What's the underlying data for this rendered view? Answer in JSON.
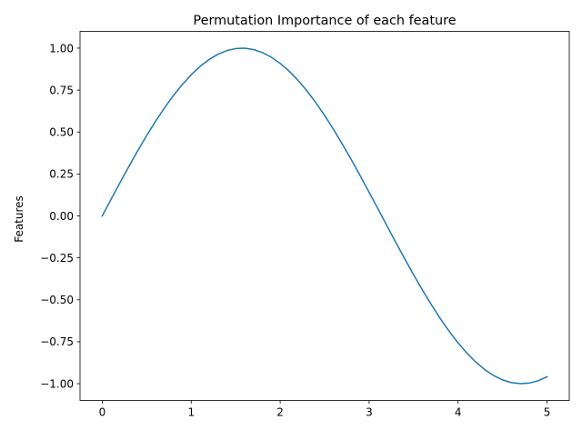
{
  "chart_data": {
    "type": "line",
    "title": "Permutation Importance of each feature",
    "xlabel": "",
    "ylabel": "Features",
    "xlim": [
      -0.25,
      5.25
    ],
    "ylim": [
      -1.1,
      1.1
    ],
    "x_ticks": [
      0,
      1,
      2,
      3,
      4,
      5
    ],
    "x_tick_labels": [
      "0",
      "1",
      "2",
      "3",
      "4",
      "5"
    ],
    "y_ticks": [
      -1.0,
      -0.75,
      -0.5,
      -0.25,
      0.0,
      0.25,
      0.5,
      0.75,
      1.0
    ],
    "y_tick_labels": [
      "−1.00",
      "−0.75",
      "−0.50",
      "−0.25",
      "0.00",
      "0.25",
      "0.50",
      "0.75",
      "1.00"
    ],
    "grid": false,
    "legend": "none",
    "colors": {
      "line": "#1f77b4",
      "axes": "#000000"
    },
    "series": [
      {
        "x": [
          0.0,
          0.1,
          0.2,
          0.3,
          0.4,
          0.5,
          0.6,
          0.7,
          0.8,
          0.9,
          1.0,
          1.1,
          1.2,
          1.3,
          1.4,
          1.5,
          1.6,
          1.7,
          1.8,
          1.9,
          2.0,
          2.1,
          2.2,
          2.3,
          2.4,
          2.5,
          2.6,
          2.7,
          2.8,
          2.9,
          3.0,
          3.1,
          3.2,
          3.3,
          3.4,
          3.5,
          3.6,
          3.7,
          3.8,
          3.9,
          4.0,
          4.1,
          4.2,
          4.3,
          4.4,
          4.5,
          4.6,
          4.7,
          4.8,
          4.9,
          5.0
        ],
        "y": [
          0.0,
          0.0998,
          0.1987,
          0.2955,
          0.3894,
          0.4794,
          0.5646,
          0.6442,
          0.7174,
          0.7833,
          0.8415,
          0.8912,
          0.932,
          0.9636,
          0.9854,
          0.9975,
          0.9996,
          0.9917,
          0.9738,
          0.9463,
          0.9093,
          0.8632,
          0.8085,
          0.7457,
          0.6755,
          0.5985,
          0.5155,
          0.4274,
          0.335,
          0.2392,
          0.1411,
          0.0416,
          -0.0584,
          -0.1577,
          -0.2555,
          -0.3508,
          -0.4425,
          -0.5298,
          -0.6119,
          -0.6878,
          -0.7568,
          -0.8183,
          -0.8716,
          -0.9162,
          -0.9516,
          -0.9775,
          -0.9937,
          -0.9999,
          -0.9962,
          -0.9825,
          -0.9589
        ]
      }
    ]
  }
}
